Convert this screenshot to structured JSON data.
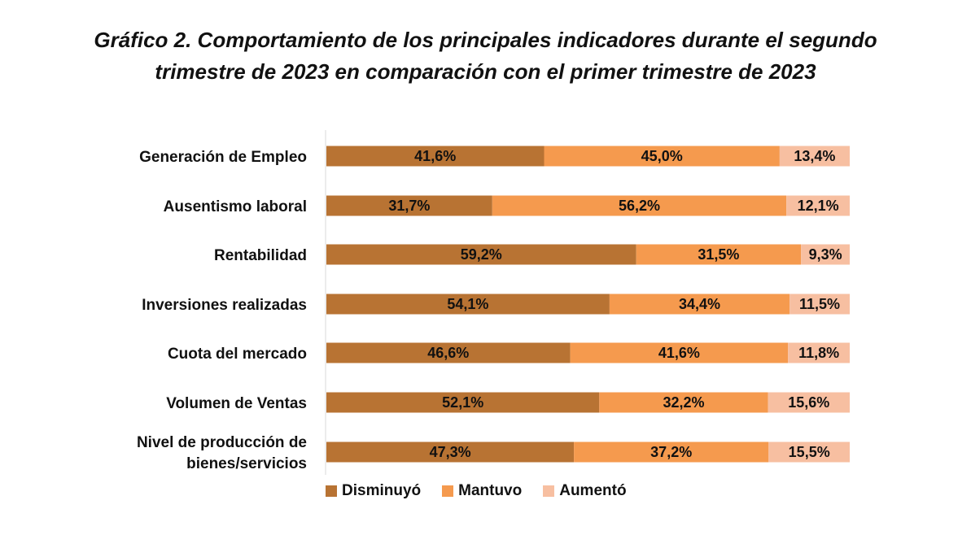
{
  "chart_data": {
    "type": "bar",
    "orientation": "horizontal",
    "stacked": "100%",
    "title_lines": [
      "Gráfico 2. Comportamiento de los principales indicadores durante el segundo",
      "trimestre de 2023 en comparación con el primer trimestre de 2023"
    ],
    "categories": [
      "Generación de Empleo",
      "Ausentismo laboral",
      "Rentabilidad",
      "Inversiones realizadas",
      "Cuota del mercado",
      "Volumen de Ventas",
      "Nivel de producción de bienes/servicios"
    ],
    "category_lines": [
      [
        "Generación de Empleo"
      ],
      [
        "Ausentismo laboral"
      ],
      [
        "Rentabilidad"
      ],
      [
        "Inversiones realizadas"
      ],
      [
        "Cuota del mercado"
      ],
      [
        "Volumen de Ventas"
      ],
      [
        "Nivel de producción de",
        "bienes/servicios"
      ]
    ],
    "series": [
      {
        "name": "Disminuyó",
        "color": "#B87333",
        "values": [
          41.6,
          31.7,
          59.2,
          54.1,
          46.6,
          52.1,
          47.3
        ],
        "labels": [
          "41,6%",
          "31,7%",
          "59,2%",
          "54,1%",
          "46,6%",
          "52,1%",
          "47,3%"
        ]
      },
      {
        "name": "Mantuvo",
        "color": "#F59A4E",
        "values": [
          45.0,
          56.2,
          31.5,
          34.4,
          41.6,
          32.2,
          37.2
        ],
        "labels": [
          "45,0%",
          "56,2%",
          "31,5%",
          "34,4%",
          "41,6%",
          "32,2%",
          "37,2%"
        ]
      },
      {
        "name": "Aumentó",
        "color": "#F7BFA1",
        "values": [
          13.4,
          12.1,
          9.3,
          11.5,
          11.8,
          15.6,
          15.5
        ],
        "labels": [
          "13,4%",
          "12,1%",
          "9,3%",
          "11,5%",
          "11,8%",
          "15,6%",
          "15,5%"
        ]
      }
    ],
    "xlim": [
      0,
      100
    ],
    "grid": false,
    "legend_position": "bottom"
  }
}
